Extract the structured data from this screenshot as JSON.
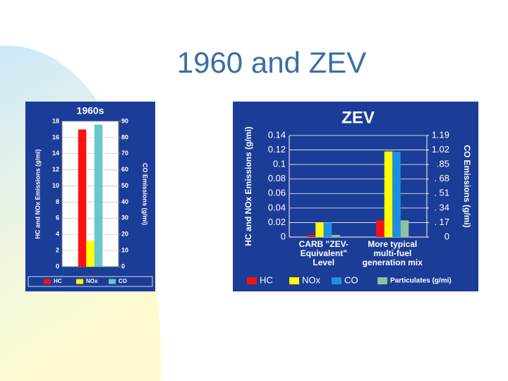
{
  "slide": {
    "title": "1960 and ZEV"
  },
  "chart_data": [
    {
      "type": "bar",
      "title": "1960s",
      "y_label": "HC and NOx Emissions (g/mi)",
      "y2_label": "CO Emissions (g/mi)",
      "categories": [
        null
      ],
      "series": [
        {
          "name": "HC",
          "color": "#ff1010",
          "values": [
            17
          ]
        },
        {
          "name": "NOx",
          "color": "#ffff00",
          "values": [
            3.2
          ]
        },
        {
          "name": "CO",
          "color": "#66c8c8",
          "values": [
            88
          ],
          "axis": "y2"
        }
      ],
      "ylim": [
        0,
        18
      ],
      "yticks": [
        0,
        2,
        4,
        6,
        8,
        10,
        12,
        14,
        16,
        18
      ],
      "y2lim": [
        0,
        90
      ],
      "y2ticks": [
        0,
        10,
        20,
        30,
        40,
        50,
        60,
        70,
        80,
        90
      ],
      "grid": true,
      "legend": "bottom"
    },
    {
      "type": "bar",
      "title": "ZEV",
      "y_label": "HC and NOx Emissions (g/mi)",
      "y2_label": "CO Emissions (g/mi)",
      "categories": [
        "CARB \"ZEV-Equivalent\" Level",
        "More typical multi-fuel generation mix"
      ],
      "series": [
        {
          "name": "HC",
          "color": "#ff1010",
          "values": [
            0.003,
            0.023
          ]
        },
        {
          "name": "NOx",
          "color": "#ffff00",
          "values": [
            0.02,
            0.118
          ]
        },
        {
          "name": "CO",
          "color": "#1e90e0",
          "values": [
            0.17,
            1.0
          ],
          "axis": "y2"
        },
        {
          "name": "Particulates (g/mi)",
          "color": "#8fc0a0",
          "values": [
            0.003,
            0.023
          ]
        }
      ],
      "ylim": [
        0,
        0.14
      ],
      "yticks": [
        0,
        0.02,
        0.04,
        0.06,
        0.08,
        0.1,
        0.12,
        0.14
      ],
      "y2lim": [
        0,
        1.19
      ],
      "y2ticks": [
        0,
        {
          "value": 0.17,
          "label": ". 17"
        },
        {
          "value": 0.34,
          "label": ". 34"
        },
        {
          "value": 0.51,
          "label": ". 51"
        },
        {
          "value": 0.68,
          "label": ". 68"
        },
        {
          "value": 0.85,
          "label": ".85"
        },
        1.02,
        1.19
      ],
      "grid": true,
      "legend": "bottom"
    }
  ]
}
